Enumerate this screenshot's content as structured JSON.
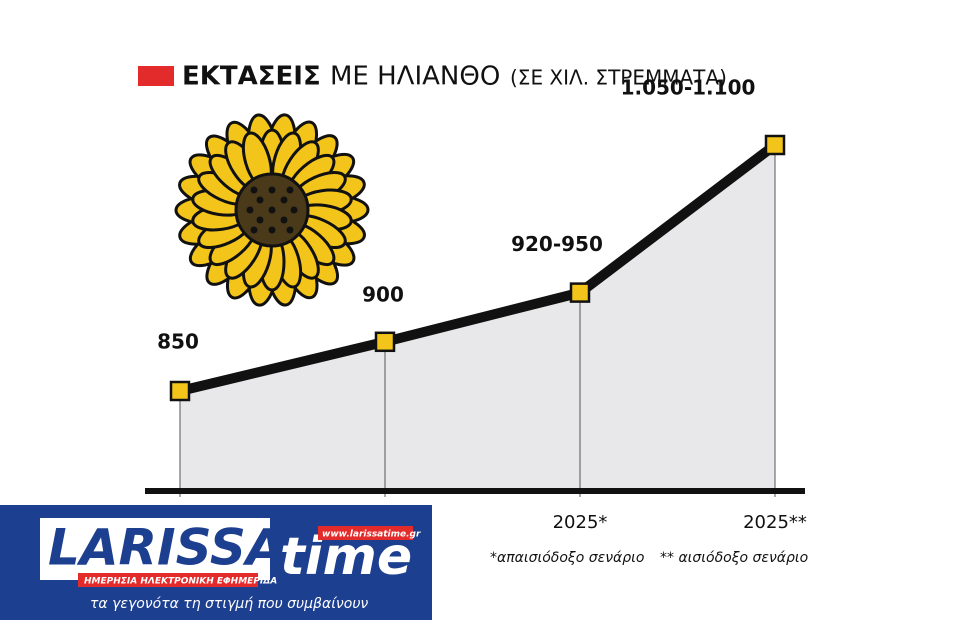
{
  "chart_data": {
    "type": "line",
    "title_bold": "ΕΚΤΑΣΕΙΣ",
    "title": "ΜΕ ΗΛΙΑΝΘΟ",
    "subtitle": "(ΣΕ ΧΙΛ. ΣΤΡΕΜΜΑΤΑ)",
    "categories": [
      null,
      null,
      "2025*",
      "2025**"
    ],
    "values": [
      850,
      900,
      950,
      1100
    ],
    "value_labels": [
      "850",
      "900",
      "920-950",
      "1.050-1.100"
    ],
    "color": "#111111",
    "marker_color": "#f3c51a",
    "notes": [
      "*απαισιόδοξο σενάριο",
      "** αισιόδοξο σενάριο"
    ]
  },
  "logo": {
    "name": "LARISSA",
    "name2": "time",
    "url": "www.larissatime.gr",
    "tagline": "ΗΜΕΡΗΣΙΑ ΗΛΕΚΤΡΟΝΙΚΗ ΕΦΗΜΕΡΙΔΑ",
    "slogan": "τα γεγονότα τη στιγμή που συμβαίνουν"
  }
}
